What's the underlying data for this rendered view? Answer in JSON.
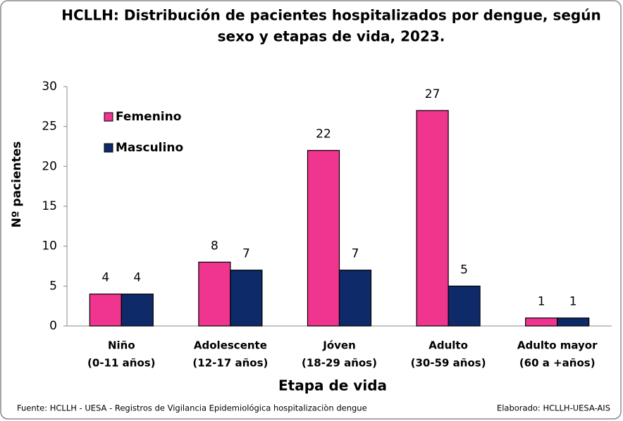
{
  "chart_data": {
    "type": "bar",
    "title": [
      "HCLLH: Distribución de pacientes hospitalizados por dengue, según",
      "sexo y etapas de vida, 2023."
    ],
    "y_label": "Nº pacientes",
    "x_label": "Etapa de vida",
    "categories": [
      [
        "Niño",
        "(0-11 años)"
      ],
      [
        "Adolescente",
        "(12-17 años)"
      ],
      [
        "Jóven",
        "(18-29 años)"
      ],
      [
        "Adulto",
        "(30-59 años)"
      ],
      [
        "Adulto mayor",
        "(60 a +años)"
      ]
    ],
    "series": [
      {
        "name": "Femenino",
        "color": "#f0358f",
        "values": [
          4,
          8,
          22,
          27,
          1
        ]
      },
      {
        "name": "Masculino",
        "color": "#0e2a69",
        "values": [
          4,
          7,
          7,
          5,
          1
        ]
      }
    ],
    "ylim": [
      0,
      30
    ],
    "yticks": [
      0,
      5,
      10,
      15,
      20,
      25,
      30
    ],
    "grid": false,
    "legend": "top-left",
    "source": "Fuente: HCLLH - UESA - Registros de Vigilancia Epidemiológica hospitalizaciòn dengue",
    "credit": "Elaborado: HCLLH-UESA-AIS"
  }
}
